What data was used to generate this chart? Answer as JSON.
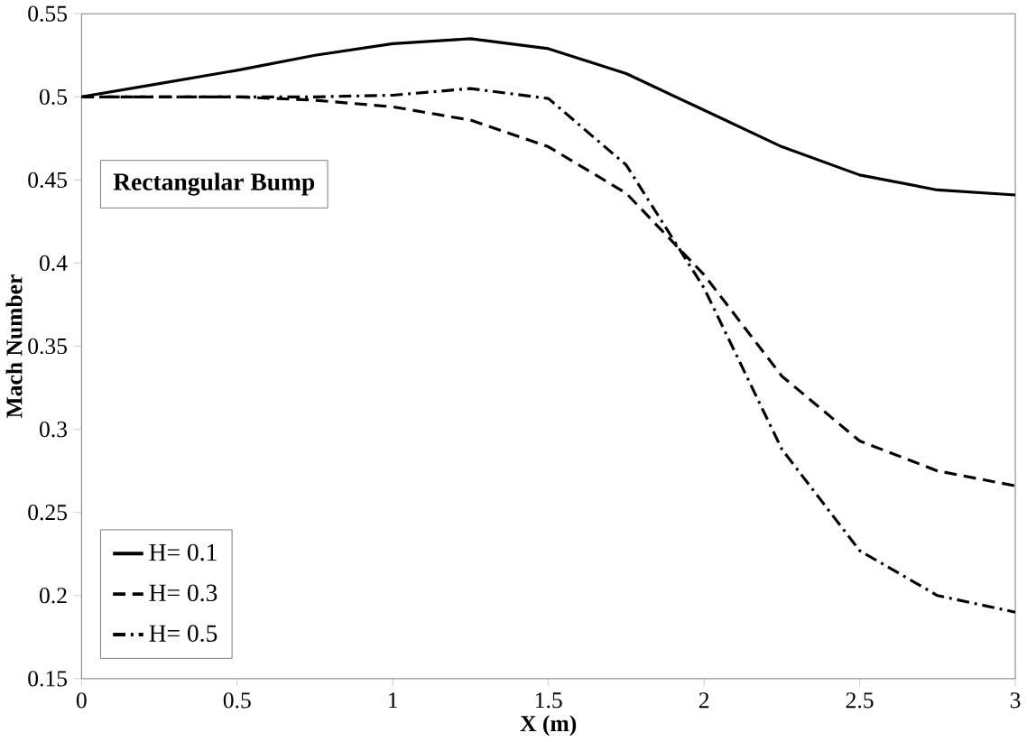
{
  "chart_data": {
    "type": "line",
    "xlabel": "X (m)",
    "ylabel": "Mach Number",
    "annotations": [
      "Rectangular Bump"
    ],
    "xlim": [
      0,
      3
    ],
    "ylim": [
      0.15,
      0.55
    ],
    "xticks": [
      0,
      0.5,
      1,
      1.5,
      2,
      2.5,
      3
    ],
    "yticks": [
      0.15,
      0.2,
      0.25,
      0.3,
      0.35,
      0.4,
      0.45,
      0.5,
      0.55
    ],
    "grid": false,
    "legend": "bottom left",
    "marker": "none",
    "x": [
      0,
      0.25,
      0.5,
      0.75,
      1,
      1.25,
      1.5,
      1.75,
      2,
      2.25,
      2.5,
      2.75,
      3
    ],
    "series": [
      {
        "name": "H= 0.1",
        "color": "#000000",
        "line_style": "solid",
        "values": [
          0.5,
          0.508,
          0.516,
          0.525,
          0.532,
          0.535,
          0.529,
          0.514,
          0.492,
          0.47,
          0.453,
          0.444,
          0.441
        ]
      },
      {
        "name": "H= 0.3",
        "color": "#000000",
        "line_style": "dashed",
        "values": [
          0.5,
          0.5,
          0.5,
          0.498,
          0.494,
          0.486,
          0.47,
          0.442,
          0.393,
          0.332,
          0.293,
          0.275,
          0.266
        ]
      },
      {
        "name": "H= 0.5",
        "color": "#000000",
        "line_style": "dashdot",
        "values": [
          0.5,
          0.5,
          0.5,
          0.5,
          0.501,
          0.505,
          0.499,
          0.459,
          0.385,
          0.288,
          0.227,
          0.2,
          0.19
        ]
      }
    ]
  }
}
